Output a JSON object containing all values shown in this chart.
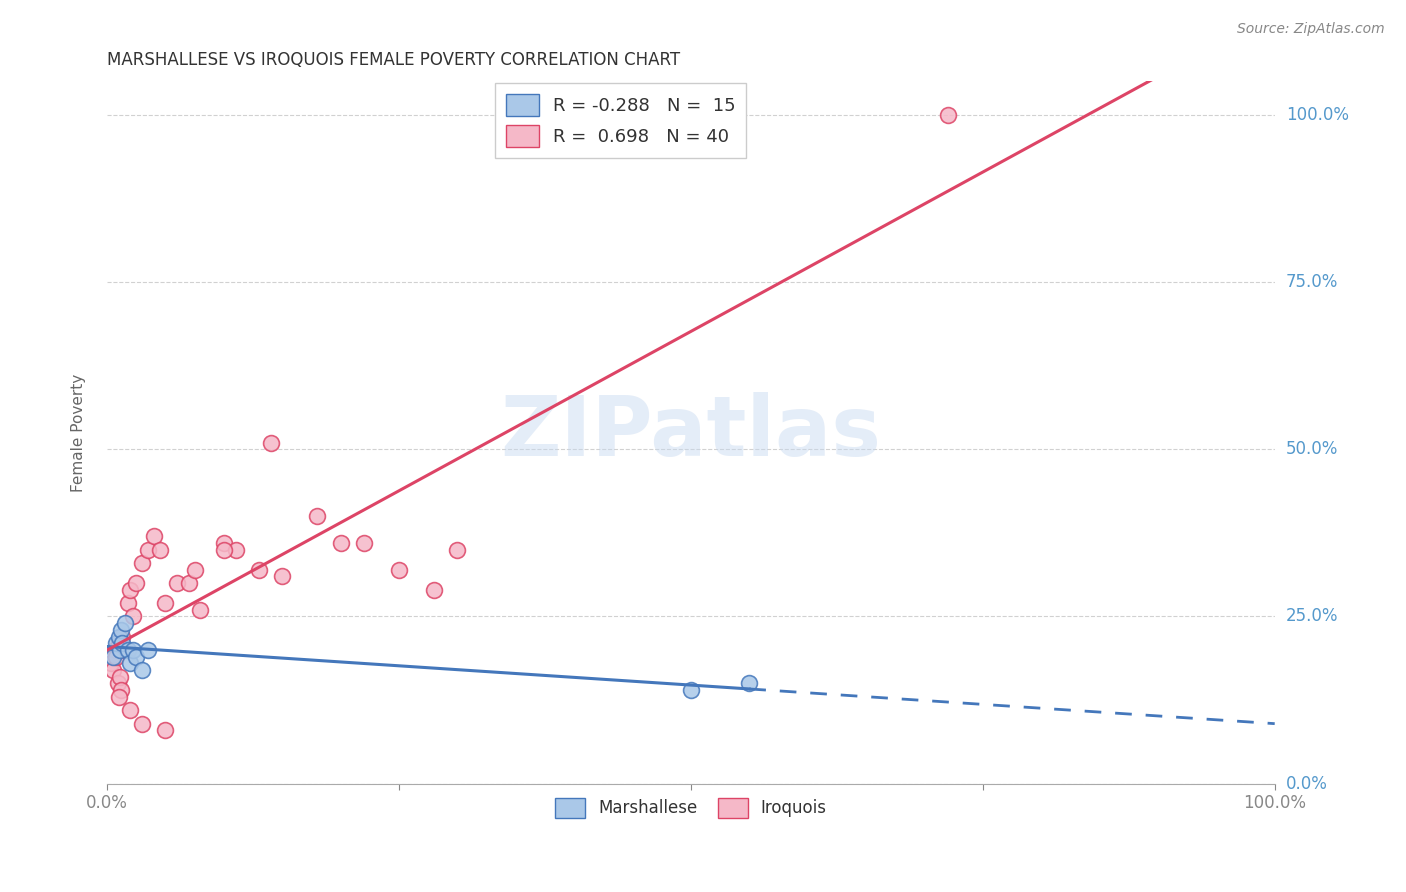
{
  "title": "MARSHALLESE VS IROQUOIS FEMALE POVERTY CORRELATION CHART",
  "source": "Source: ZipAtlas.com",
  "ylabel": "Female Poverty",
  "blue_color": "#aac8e8",
  "pink_color": "#f5b8c8",
  "blue_line_color": "#4477bb",
  "pink_line_color": "#dd4466",
  "marshallese_label": "Marshallese",
  "iroquois_label": "Iroquois",
  "background_color": "#ffffff",
  "grid_color": "#cccccc",
  "watermark": "ZIPatlas",
  "marshallese_x": [
    0.5,
    0.8,
    1.0,
    1.1,
    1.2,
    1.3,
    1.5,
    1.8,
    2.0,
    2.2,
    2.5,
    3.0,
    3.5,
    50.0,
    55.0
  ],
  "marshallese_y": [
    19,
    21,
    22,
    20,
    23,
    21,
    24,
    20,
    18,
    20,
    19,
    17,
    20,
    14,
    15
  ],
  "iroquois_x": [
    0.3,
    0.5,
    0.7,
    0.8,
    0.9,
    1.0,
    1.1,
    1.2,
    1.3,
    1.5,
    1.8,
    2.0,
    2.2,
    2.5,
    3.0,
    3.5,
    4.0,
    4.5,
    5.0,
    6.0,
    7.0,
    8.0,
    10.0,
    11.0,
    13.0,
    15.0,
    18.0,
    22.0,
    25.0,
    30.0,
    1.0,
    2.0,
    3.0,
    5.0,
    7.5,
    10.0,
    14.0,
    20.0,
    28.0,
    72.0
  ],
  "iroquois_y": [
    18,
    17,
    20,
    19,
    15,
    21,
    16,
    14,
    22,
    20,
    27,
    29,
    25,
    30,
    33,
    35,
    37,
    35,
    27,
    30,
    30,
    26,
    36,
    35,
    32,
    31,
    40,
    36,
    32,
    35,
    13,
    11,
    9,
    8,
    32,
    35,
    51,
    36,
    29,
    100
  ],
  "ytick_values": [
    0,
    25,
    50,
    75,
    100
  ],
  "ytick_labels": [
    "0.0%",
    "25.0%",
    "50.0%",
    "75.0%",
    "100.0%"
  ],
  "xlim": [
    0,
    100
  ],
  "ylim": [
    0,
    105
  ]
}
